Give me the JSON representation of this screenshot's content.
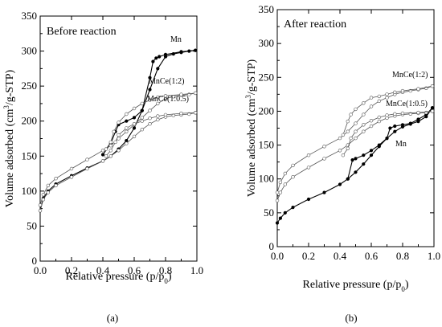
{
  "chart_data": [
    {
      "type": "line",
      "panel": "(a)",
      "title": "Before reaction",
      "xlabel": "Relative pressure (p/p0)",
      "ylabel": "Volume adsorbed (cm3/g-STP)",
      "xlim": [
        0,
        1.0
      ],
      "ylim": [
        0,
        350
      ],
      "xticks": [
        0.0,
        0.2,
        0.4,
        0.6,
        0.8,
        1.0
      ],
      "yticks": [
        0,
        50,
        100,
        150,
        200,
        250,
        300,
        350
      ],
      "series": [
        {
          "name": "Mn",
          "marker": "filled",
          "adsorption": [
            [
              0.0,
              72
            ],
            [
              0.02,
              90
            ],
            [
              0.05,
              100
            ],
            [
              0.1,
              110
            ],
            [
              0.2,
              122
            ],
            [
              0.3,
              133
            ],
            [
              0.4,
              143
            ],
            [
              0.45,
              150
            ],
            [
              0.5,
              160
            ],
            [
              0.55,
              172
            ],
            [
              0.6,
              190
            ],
            [
              0.65,
              215
            ],
            [
              0.7,
              245
            ],
            [
              0.75,
              275
            ],
            [
              0.8,
              292
            ],
            [
              0.85,
              296
            ],
            [
              0.9,
              298
            ],
            [
              0.95,
              300
            ],
            [
              0.99,
              301
            ]
          ],
          "desorption": [
            [
              0.99,
              301
            ],
            [
              0.9,
              299
            ],
            [
              0.8,
              295
            ],
            [
              0.76,
              292
            ],
            [
              0.74,
              290
            ],
            [
              0.72,
              285
            ],
            [
              0.7,
              262
            ],
            [
              0.65,
              215
            ],
            [
              0.6,
              205
            ],
            [
              0.55,
              200
            ],
            [
              0.5,
              195
            ],
            [
              0.48,
              185
            ],
            [
              0.45,
              168
            ],
            [
              0.4,
              152
            ]
          ]
        },
        {
          "name": "MnCe(1:2)",
          "marker": "open",
          "adsorption": [
            [
              0.0,
              80
            ],
            [
              0.02,
              95
            ],
            [
              0.05,
              108
            ],
            [
              0.1,
              118
            ],
            [
              0.2,
              132
            ],
            [
              0.3,
              145
            ],
            [
              0.4,
              158
            ],
            [
              0.45,
              165
            ],
            [
              0.5,
              175
            ],
            [
              0.55,
              185
            ],
            [
              0.6,
              195
            ],
            [
              0.65,
              205
            ],
            [
              0.7,
              215
            ],
            [
              0.75,
              225
            ],
            [
              0.8,
              232
            ],
            [
              0.85,
              235
            ],
            [
              0.9,
              237
            ],
            [
              0.95,
              238
            ],
            [
              0.99,
              240
            ]
          ],
          "desorption": [
            [
              0.99,
              240
            ],
            [
              0.9,
              238
            ],
            [
              0.8,
              236
            ],
            [
              0.75,
              234
            ],
            [
              0.7,
              230
            ],
            [
              0.65,
              225
            ],
            [
              0.6,
              218
            ],
            [
              0.55,
              210
            ],
            [
              0.5,
              198
            ],
            [
              0.47,
              185
            ],
            [
              0.45,
              170
            ],
            [
              0.42,
              160
            ]
          ]
        },
        {
          "name": "MnCe(1:0.5)",
          "marker": "open",
          "adsorption": [
            [
              0.0,
              72
            ],
            [
              0.02,
              88
            ],
            [
              0.05,
              98
            ],
            [
              0.1,
              108
            ],
            [
              0.2,
              120
            ],
            [
              0.3,
              132
            ],
            [
              0.4,
              143
            ],
            [
              0.45,
              150
            ],
            [
              0.5,
              158
            ],
            [
              0.55,
              168
            ],
            [
              0.6,
              178
            ],
            [
              0.65,
              188
            ],
            [
              0.7,
              196
            ],
            [
              0.75,
              202
            ],
            [
              0.8,
              206
            ],
            [
              0.85,
              208
            ],
            [
              0.9,
              209
            ],
            [
              0.95,
              210
            ],
            [
              0.99,
              212
            ]
          ],
          "desorption": [
            [
              0.99,
              212
            ],
            [
              0.9,
              211
            ],
            [
              0.8,
              209
            ],
            [
              0.75,
              207
            ],
            [
              0.7,
              204
            ],
            [
              0.65,
              200
            ],
            [
              0.6,
              196
            ],
            [
              0.55,
              190
            ],
            [
              0.5,
              180
            ],
            [
              0.48,
              170
            ],
            [
              0.45,
              158
            ],
            [
              0.42,
              150
            ]
          ]
        }
      ],
      "labels": [
        "Mn",
        "MnCe(1:2)",
        "MnCe(1:0.5)"
      ]
    },
    {
      "type": "line",
      "panel": "(b)",
      "title": "After reaction",
      "xlabel": "Relative pressure (p/p0)",
      "ylabel": "Volume adsorbed (cm3/g-STP)",
      "xlim": [
        0,
        1.0
      ],
      "ylim": [
        0,
        350
      ],
      "xticks": [
        0.0,
        0.2,
        0.4,
        0.6,
        0.8,
        1.0
      ],
      "yticks": [
        0,
        50,
        100,
        150,
        200,
        250,
        300,
        350
      ],
      "series": [
        {
          "name": "Mn",
          "marker": "filled",
          "adsorption": [
            [
              0.0,
              35
            ],
            [
              0.02,
              42
            ],
            [
              0.05,
              50
            ],
            [
              0.1,
              58
            ],
            [
              0.2,
              70
            ],
            [
              0.3,
              80
            ],
            [
              0.4,
              92
            ],
            [
              0.45,
              100
            ],
            [
              0.5,
              110
            ],
            [
              0.55,
              122
            ],
            [
              0.6,
              135
            ],
            [
              0.65,
              148
            ],
            [
              0.7,
              160
            ],
            [
              0.75,
              170
            ],
            [
              0.8,
              177
            ],
            [
              0.85,
              181
            ],
            [
              0.9,
              185
            ],
            [
              0.95,
              192
            ],
            [
              0.99,
              205
            ]
          ],
          "desorption": [
            [
              0.99,
              205
            ],
            [
              0.95,
              195
            ],
            [
              0.9,
              188
            ],
            [
              0.85,
              182
            ],
            [
              0.8,
              180
            ],
            [
              0.75,
              178
            ],
            [
              0.72,
              175
            ],
            [
              0.7,
              160
            ],
            [
              0.65,
              150
            ],
            [
              0.6,
              142
            ],
            [
              0.55,
              135
            ],
            [
              0.5,
              130
            ],
            [
              0.48,
              128
            ],
            [
              0.45,
              100
            ]
          ]
        },
        {
          "name": "MnCe(1:2)",
          "marker": "open",
          "adsorption": [
            [
              0.0,
              80
            ],
            [
              0.02,
              95
            ],
            [
              0.05,
              108
            ],
            [
              0.1,
              120
            ],
            [
              0.2,
              135
            ],
            [
              0.3,
              148
            ],
            [
              0.4,
              160
            ],
            [
              0.45,
              170
            ],
            [
              0.5,
              182
            ],
            [
              0.55,
              195
            ],
            [
              0.6,
              207
            ],
            [
              0.65,
              215
            ],
            [
              0.7,
              220
            ],
            [
              0.75,
              225
            ],
            [
              0.8,
              228
            ],
            [
              0.85,
              230
            ],
            [
              0.9,
              232
            ],
            [
              0.95,
              234
            ],
            [
              0.99,
              237
            ]
          ],
          "desorption": [
            [
              0.99,
              237
            ],
            [
              0.9,
              233
            ],
            [
              0.8,
              230
            ],
            [
              0.75,
              228
            ],
            [
              0.7,
              225
            ],
            [
              0.65,
              222
            ],
            [
              0.6,
              220
            ],
            [
              0.55,
              212
            ],
            [
              0.5,
              203
            ],
            [
              0.47,
              195
            ],
            [
              0.45,
              185
            ],
            [
              0.42,
              165
            ]
          ]
        },
        {
          "name": "MnCe(1:0.5)",
          "marker": "open",
          "adsorption": [
            [
              0.0,
              68
            ],
            [
              0.02,
              80
            ],
            [
              0.05,
              92
            ],
            [
              0.1,
              103
            ],
            [
              0.2,
              117
            ],
            [
              0.3,
              130
            ],
            [
              0.4,
              142
            ],
            [
              0.45,
              150
            ],
            [
              0.5,
              160
            ],
            [
              0.55,
              170
            ],
            [
              0.6,
              178
            ],
            [
              0.65,
              185
            ],
            [
              0.7,
              190
            ],
            [
              0.75,
              193
            ],
            [
              0.8,
              195
            ],
            [
              0.85,
              196
            ],
            [
              0.9,
              197
            ],
            [
              0.95,
              198
            ],
            [
              0.99,
              200
            ]
          ],
          "desorption": [
            [
              0.99,
              200
            ],
            [
              0.9,
              198
            ],
            [
              0.8,
              197
            ],
            [
              0.75,
              196
            ],
            [
              0.7,
              194
            ],
            [
              0.65,
              191
            ],
            [
              0.6,
              186
            ],
            [
              0.55,
              180
            ],
            [
              0.5,
              170
            ],
            [
              0.47,
              160
            ],
            [
              0.45,
              145
            ],
            [
              0.42,
              135
            ]
          ]
        }
      ],
      "labels": [
        "MnCe(1:2)",
        "MnCe(1:0.5)",
        "Mn"
      ]
    }
  ]
}
